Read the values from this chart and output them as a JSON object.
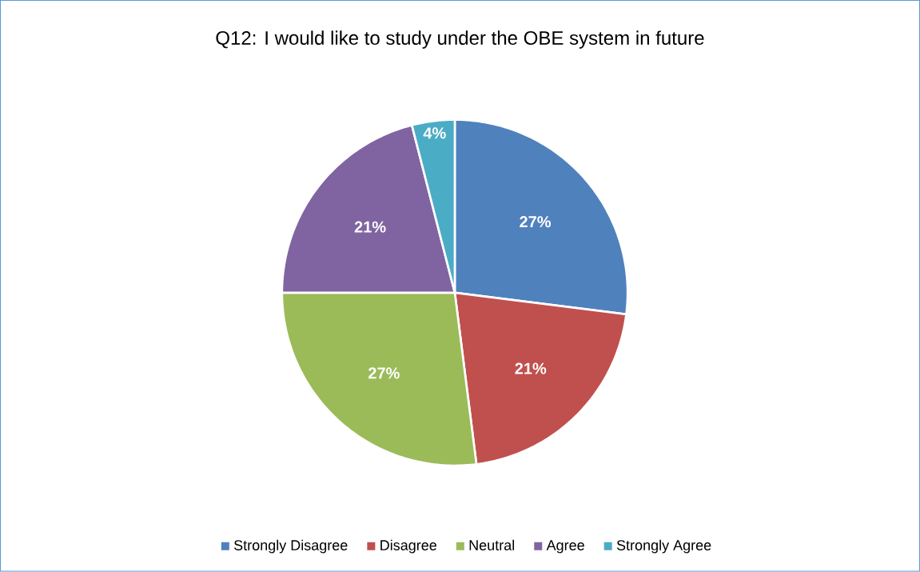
{
  "chart_data": {
    "type": "pie",
    "title": "Q12: I would like to study under the OBE system in future",
    "categories": [
      "Strongly Disagree",
      "Disagree",
      "Neutral",
      "Agree",
      "Strongly Agree"
    ],
    "values": [
      27,
      21,
      27,
      21,
      4
    ],
    "colors": [
      "#4f81bd",
      "#c0504d",
      "#9bbb59",
      "#8064a2",
      "#4bacc6"
    ],
    "value_labels": [
      "27%",
      "21%",
      "27%",
      "21%",
      "4%"
    ],
    "legend": "bottom"
  }
}
